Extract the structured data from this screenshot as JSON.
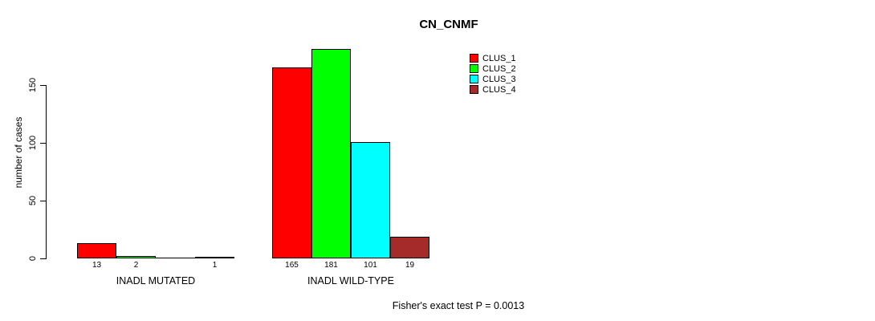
{
  "chart_data": {
    "type": "bar",
    "title": "CN_CNMF",
    "ylabel": "number of cases",
    "xlabel": "",
    "annotation": "Fisher's exact test P = 0.0013",
    "yticks": [
      0,
      50,
      100,
      150
    ],
    "ylim": [
      0,
      185
    ],
    "grid": false,
    "legend_position": "top-right",
    "series": [
      {
        "name": "CLUS_1",
        "color": "#ff0000"
      },
      {
        "name": "CLUS_2",
        "color": "#00ff00"
      },
      {
        "name": "CLUS_3",
        "color": "#00ffff"
      },
      {
        "name": "CLUS_4",
        "color": "#a52a2a"
      }
    ],
    "categories": [
      "INADL MUTATED",
      "INADL WILD-TYPE"
    ],
    "groups": [
      {
        "label": "INADL MUTATED",
        "values": [
          13,
          2,
          0,
          1
        ],
        "bar_labels": [
          "13",
          "2",
          "",
          "1"
        ]
      },
      {
        "label": "INADL WILD-TYPE",
        "values": [
          165,
          181,
          101,
          19
        ],
        "bar_labels": [
          "165",
          "181",
          "101",
          "19"
        ]
      }
    ]
  }
}
